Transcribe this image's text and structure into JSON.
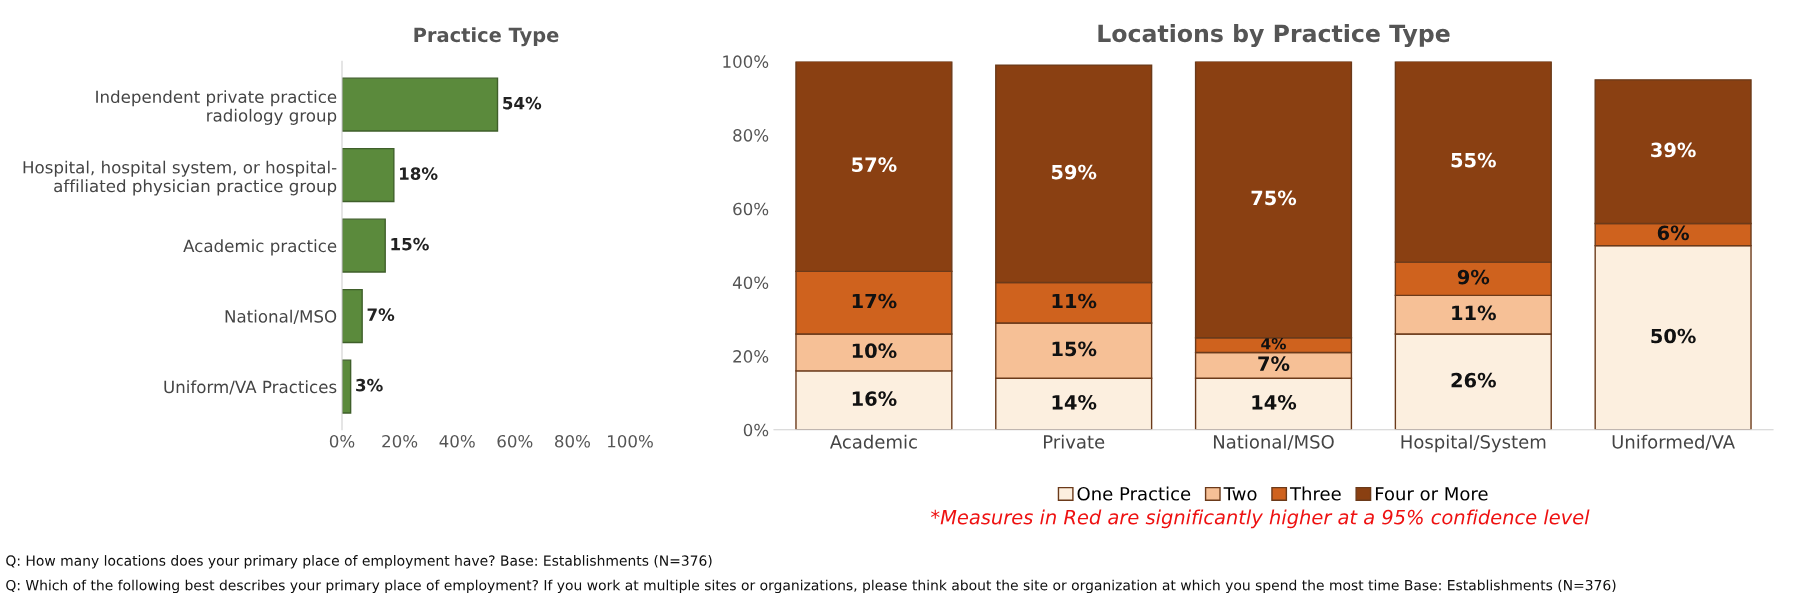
{
  "chart_data": [
    {
      "type": "bar",
      "orientation": "horizontal",
      "title": "Practice Type",
      "categories": [
        "Independent private practice\nradiology group",
        "Hospital, hospital system, or hospital-\naffiliated physician practice group",
        "Academic practice",
        "National/MSO",
        "Uniform/VA Practices"
      ],
      "values": [
        54,
        18,
        15,
        7,
        3
      ],
      "value_labels": [
        "54%",
        "18%",
        "15%",
        "7%",
        "3%"
      ],
      "color": "#5b8a3c",
      "xlim": [
        0,
        100
      ],
      "xticks": [
        {
          "value": 0,
          "label": "0%"
        },
        {
          "value": 20,
          "label": "20%"
        },
        {
          "value": 40,
          "label": "40%"
        },
        {
          "value": 60,
          "label": "60%"
        },
        {
          "value": 80,
          "label": "80%"
        },
        {
          "value": 100,
          "label": "100%"
        }
      ],
      "grid": false,
      "legend": false,
      "annotations": [
        "Q: How many locations does your primary place of employment have? Base: Establishments (N=376)",
        "Q: Which of the following best describes your primary place of employment? If you work at multiple sites or organizations, please think about the site or organization at which you spend the most time Base: Establishments (N=376)"
      ]
    },
    {
      "type": "bar",
      "stacked": true,
      "title": "Locations by Practice Type",
      "categories": [
        "Academic",
        "Private",
        "National/MSO",
        "Hospital/System",
        "Uniformed/VA"
      ],
      "series": [
        {
          "name": "One Practice",
          "color": "#fcefdf",
          "values": [
            16,
            14,
            14,
            26,
            50
          ],
          "value_labels": [
            "16%",
            "14%",
            "14%",
            "26%",
            "50%"
          ]
        },
        {
          "name": "Two",
          "color": "#f6c096",
          "values": [
            10,
            15,
            7,
            10.5,
            null
          ],
          "value_labels": [
            "10%",
            "15%",
            "7%",
            "11%",
            null
          ]
        },
        {
          "name": "Three",
          "color": "#cf621e",
          "values": [
            17,
            11,
            4,
            9,
            6
          ],
          "value_labels": [
            "17%",
            "11%",
            "4%",
            "9%",
            "6%"
          ]
        },
        {
          "name": "Four or More",
          "color": "#8a4012",
          "values": [
            57,
            59,
            75,
            54.5,
            39
          ],
          "value_labels": [
            "57%",
            "59%",
            "75%",
            "55%",
            "39%"
          ]
        }
      ],
      "ylim": [
        0,
        100
      ],
      "yticks": [
        {
          "value": 0,
          "label": "0%"
        },
        {
          "value": 20,
          "label": "20%"
        },
        {
          "value": 40,
          "label": "40%"
        },
        {
          "value": 60,
          "label": "60%"
        },
        {
          "value": 80,
          "label": "80%"
        },
        {
          "value": 100,
          "label": "100%"
        }
      ],
      "grid": false,
      "legend": "bottom",
      "annotations": [
        "*Measures in Red are significantly higher at a 95% confidence level"
      ]
    }
  ]
}
